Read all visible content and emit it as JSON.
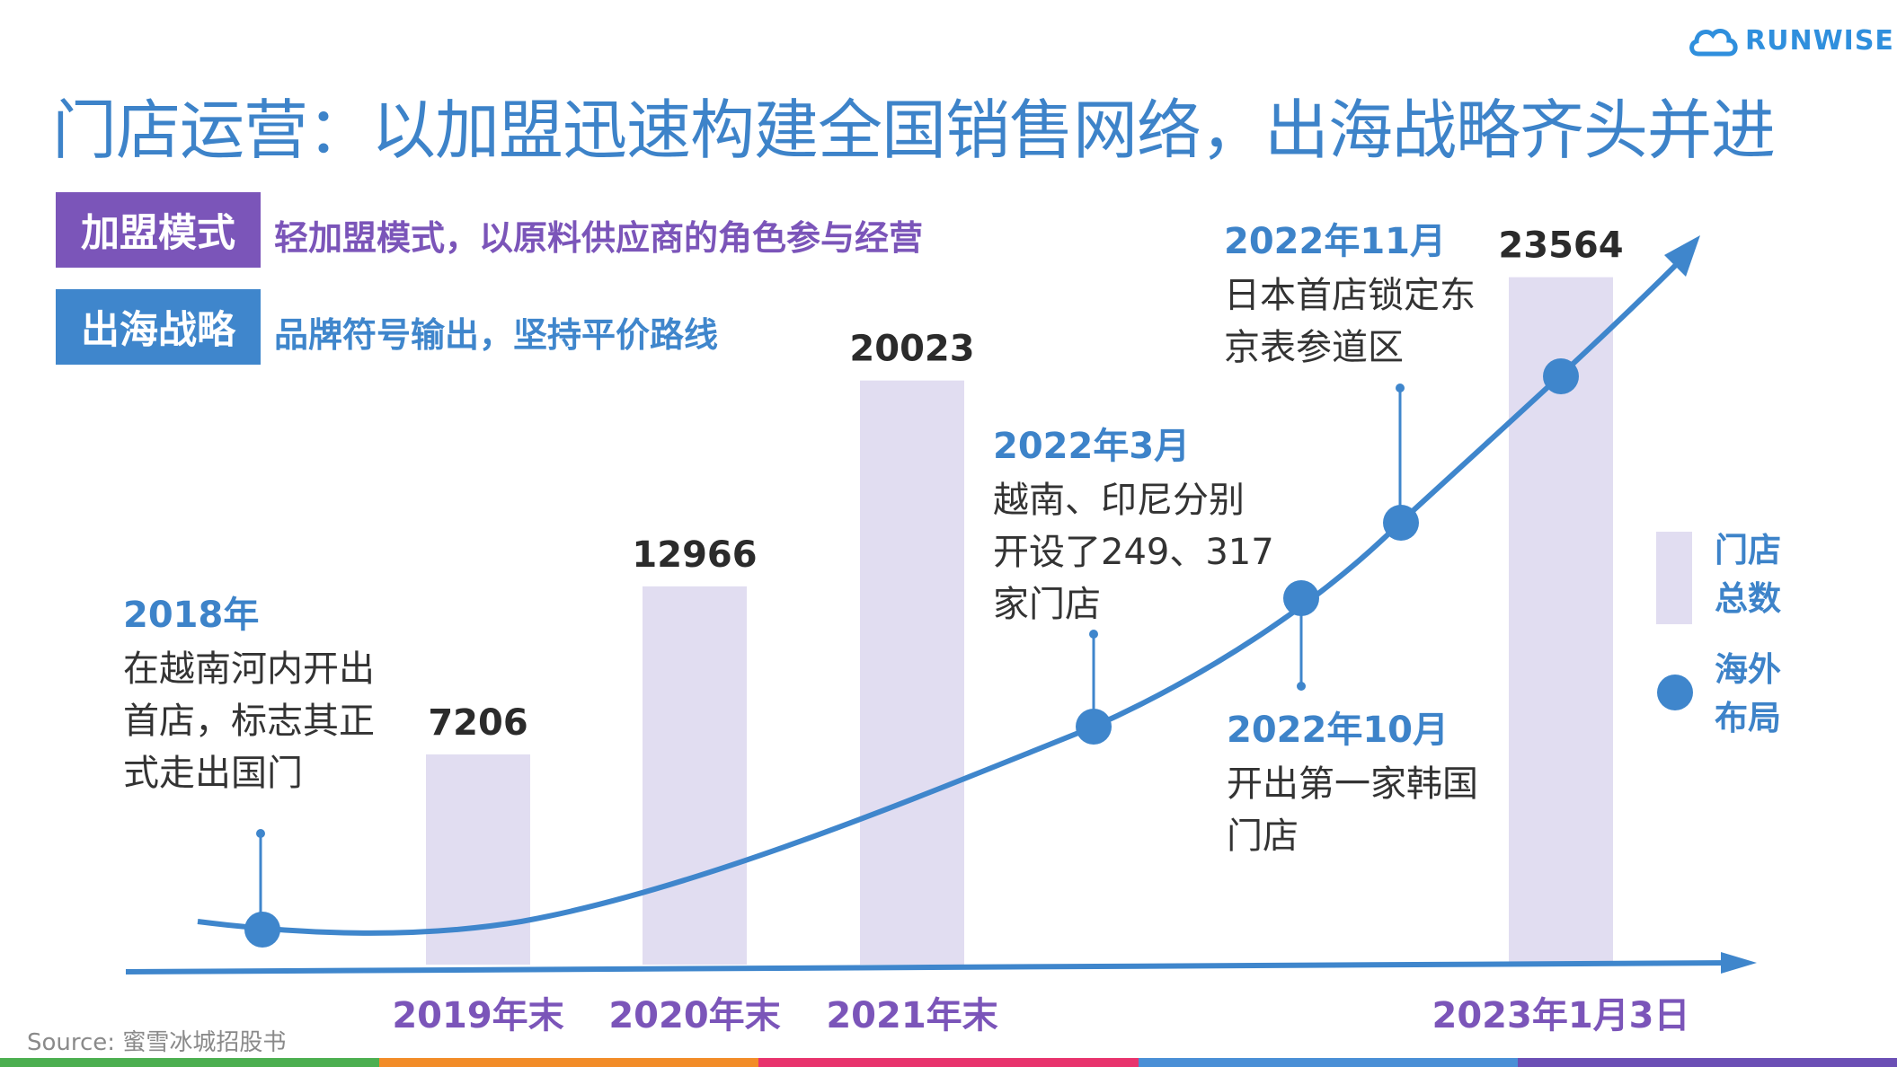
{
  "logo": {
    "text": "RUNWISE"
  },
  "title": "门店运营：以加盟迅速构建全国销售网络，出海战略齐头并进",
  "tags": [
    {
      "label": "加盟模式",
      "desc": "轻加盟模式，以原料供应商的角色参与经营",
      "color": "#7b55b9"
    },
    {
      "label": "出海战略",
      "desc": "品牌符号输出，坚持平价路线",
      "color": "#3f86cc"
    }
  ],
  "chart_data": {
    "type": "bar",
    "categories": [
      "2019年末",
      "2020年末",
      "2021年末",
      "2023年1月3日"
    ],
    "values": [
      7206,
      12966,
      20023,
      23564
    ],
    "value_labels": [
      "7206",
      "12966",
      "20023",
      "23564"
    ],
    "ylim": [
      0,
      25000
    ],
    "bar_color": "#e1ddf1",
    "line_color": "#3f86cc",
    "legend": [
      {
        "label_lines": [
          "门店",
          "总数"
        ],
        "marker": "bar"
      },
      {
        "label_lines": [
          "海外",
          "布局"
        ],
        "marker": "dot"
      }
    ],
    "annotations": [
      {
        "heading": "2018年",
        "lines": [
          "在越南河内开出",
          "首店，标志其正",
          "式走出国门"
        ]
      },
      {
        "heading": "2022年3月",
        "lines": [
          "越南、印尼分别",
          "开设了249、317",
          "家门店"
        ]
      },
      {
        "heading": "2022年10月",
        "lines": [
          "开出第一家韩国",
          "门店"
        ]
      },
      {
        "heading": "2022年11月",
        "lines": [
          "日本首店锁定东",
          "京表参道区"
        ]
      }
    ]
  },
  "source": "Source: 蜜雪冰城招股书",
  "bottom_bar_colors": [
    "#4caf50",
    "#f28c28",
    "#e8336d",
    "#4a8fd6",
    "#6b4fb5"
  ]
}
